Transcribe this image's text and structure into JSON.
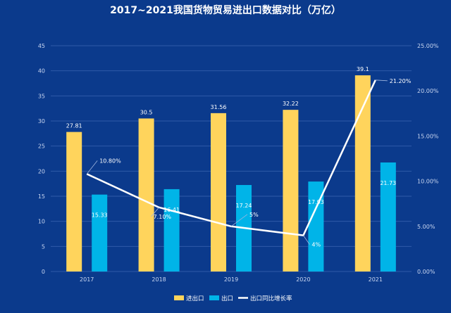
{
  "colors": {
    "background": "#0b3a8c",
    "import_export_bar": "#ffd45c",
    "export_bar": "#00b4e8",
    "growth_line": "#ffffff",
    "grid": "#2f5ba8"
  },
  "chart_data": {
    "type": "bar",
    "title": "2017~2021我国货物贸易进出口数据对比（万亿）",
    "categories": [
      "2017",
      "2018",
      "2019",
      "2020",
      "2021"
    ],
    "series": [
      {
        "name": "进出口",
        "type": "bar",
        "axis": "left",
        "values": [
          27.81,
          30.5,
          31.56,
          32.22,
          39.1
        ],
        "labels": [
          "27.81",
          "30.5",
          "31.56",
          "32.22",
          "39.1"
        ]
      },
      {
        "name": "出口",
        "type": "bar",
        "axis": "left",
        "values": [
          15.33,
          16.41,
          17.24,
          17.93,
          21.73
        ],
        "labels": [
          "15.33",
          "16.41",
          "17.24",
          "17.93",
          "21.73"
        ]
      },
      {
        "name": "出口同比增长率",
        "type": "line",
        "axis": "right",
        "values": [
          10.8,
          7.1,
          5,
          4,
          21.2
        ],
        "labels": [
          "10.80%",
          "7.10%",
          "5%",
          "4%",
          "21.20%"
        ]
      }
    ],
    "y_left": {
      "min": 0,
      "max": 45,
      "step": 5,
      "ticks": [
        "0",
        "5",
        "10",
        "15",
        "20",
        "25",
        "30",
        "35",
        "40",
        "45"
      ]
    },
    "y_right": {
      "min": 0,
      "max": 25,
      "step": 5,
      "ticks": [
        "0.00%",
        "5.00%",
        "10.00%",
        "15.00%",
        "20.00%",
        "25.00%"
      ]
    },
    "grid": true,
    "legend_position": "bottom-center"
  }
}
